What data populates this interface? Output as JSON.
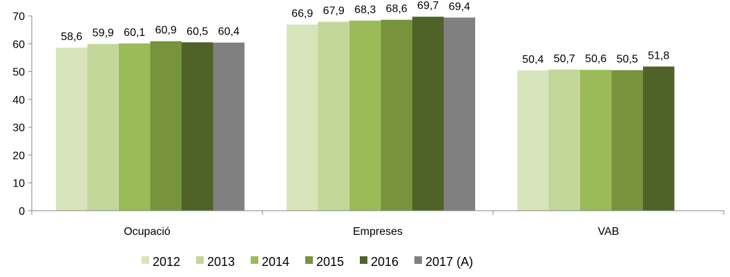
{
  "chart_data": {
    "type": "bar",
    "title": "",
    "xlabel": "",
    "ylabel": "",
    "ylim": [
      0,
      70
    ],
    "yticks": [
      0,
      10,
      20,
      30,
      40,
      50,
      60,
      70
    ],
    "grid": false,
    "legend_position": "bottom",
    "categories": [
      "Ocupació",
      "Empreses",
      "VAB"
    ],
    "series": [
      {
        "name": "2012",
        "color": "#d8e4bc",
        "values": [
          58.6,
          66.9,
          50.4
        ],
        "labels": [
          "58,6",
          "66,9",
          "50,4"
        ]
      },
      {
        "name": "2013",
        "color": "#c4d79b",
        "values": [
          59.9,
          67.9,
          50.7
        ],
        "labels": [
          "59,9",
          "67,9",
          "50,7"
        ]
      },
      {
        "name": "2014",
        "color": "#9bbb59",
        "values": [
          60.1,
          68.3,
          50.6
        ],
        "labels": [
          "60,1",
          "68,3",
          "50,6"
        ]
      },
      {
        "name": "2015",
        "color": "#77933c",
        "values": [
          60.9,
          68.6,
          50.5
        ],
        "labels": [
          "60,9",
          "68,6",
          "50,5"
        ]
      },
      {
        "name": "2016",
        "color": "#4f6228",
        "values": [
          60.5,
          69.7,
          51.8
        ],
        "labels": [
          "60,5",
          "69,7",
          "51,8"
        ]
      },
      {
        "name": "2017 (A)",
        "color": "#808080",
        "values": [
          60.4,
          69.4,
          null
        ],
        "labels": [
          "60,4",
          "69,4",
          ""
        ]
      }
    ]
  }
}
